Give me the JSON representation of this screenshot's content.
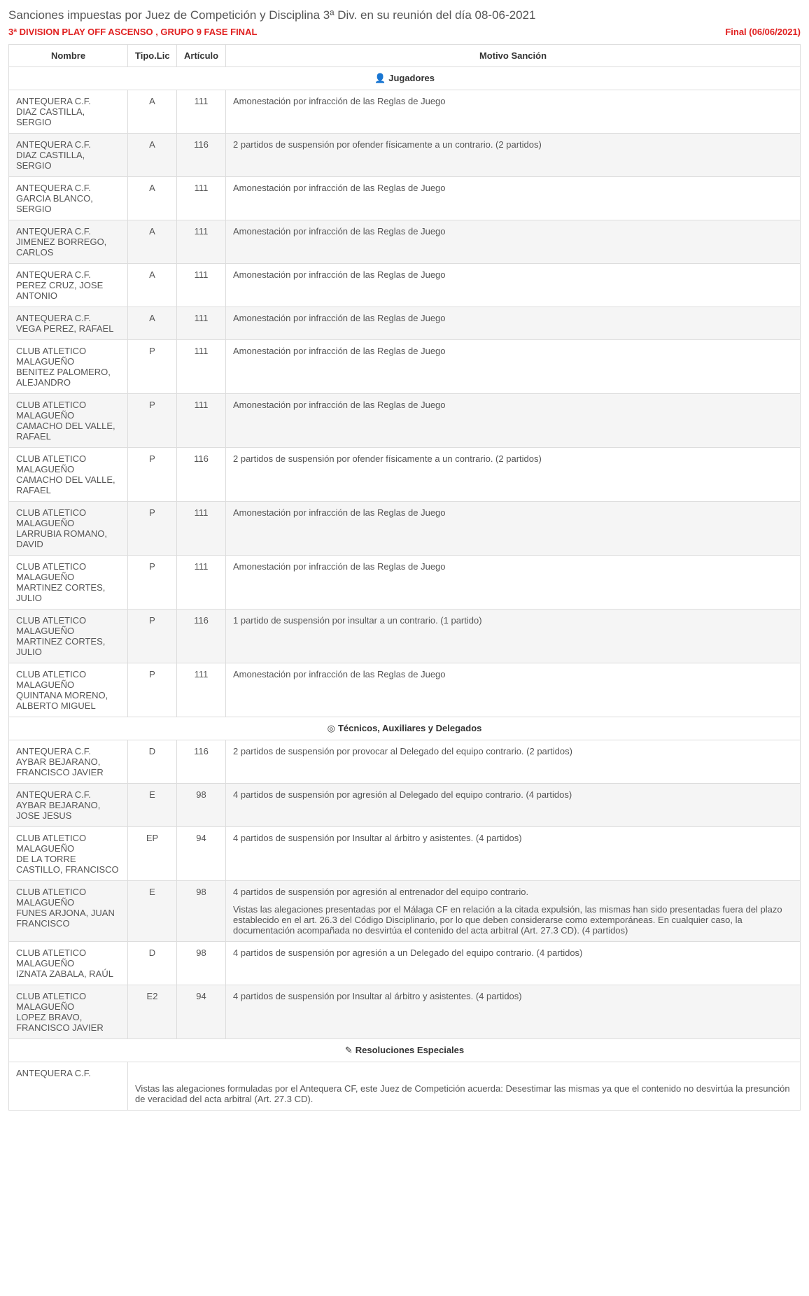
{
  "page": {
    "title": "Sanciones impuestas por Juez de Competición y Disciplina 3ª Div. en su reunión del día 08-06-2021",
    "competition": "3ª DIVISION PLAY OFF ASCENSO ,  GRUPO 9 FASE FINAL",
    "final_date": "Final (06/06/2021)"
  },
  "columns": {
    "nombre": "Nombre",
    "tipo": "Tipo.Lic",
    "articulo": "Artículo",
    "motivo": "Motivo Sanción"
  },
  "sections": {
    "jugadores": {
      "icon": "👤",
      "label": "Jugadores"
    },
    "tecnicos": {
      "icon": "◎",
      "label": "Técnicos, Auxiliares y Delegados"
    },
    "resoluciones": {
      "icon": "✎",
      "label": "Resoluciones Especiales"
    }
  },
  "jugadores": [
    {
      "club": "ANTEQUERA C.F.",
      "player": "DIAZ CASTILLA, SERGIO",
      "tipo": "A",
      "art": "111",
      "motivo": "Amonestación por infracción de las Reglas de Juego"
    },
    {
      "club": "ANTEQUERA C.F.",
      "player": "DIAZ CASTILLA, SERGIO",
      "tipo": "A",
      "art": "116",
      "motivo": "2 partidos de suspensión por ofender físicamente a un contrario.  (2 partidos)"
    },
    {
      "club": "ANTEQUERA C.F.",
      "player": "GARCIA BLANCO, SERGIO",
      "tipo": "A",
      "art": "111",
      "motivo": "Amonestación por infracción de las Reglas de Juego"
    },
    {
      "club": "ANTEQUERA C.F.",
      "player": "JIMENEZ BORREGO, CARLOS",
      "tipo": "A",
      "art": "111",
      "motivo": "Amonestación por infracción de las Reglas de Juego"
    },
    {
      "club": "ANTEQUERA C.F.",
      "player": "PEREZ CRUZ, JOSE ANTONIO",
      "tipo": "A",
      "art": "111",
      "motivo": "Amonestación por infracción de las Reglas de Juego"
    },
    {
      "club": "ANTEQUERA C.F.",
      "player": "VEGA PEREZ, RAFAEL",
      "tipo": "A",
      "art": "111",
      "motivo": "Amonestación por infracción de las Reglas de Juego"
    },
    {
      "club": "CLUB ATLETICO MALAGUEÑO",
      "player": "BENITEZ PALOMERO, ALEJANDRO",
      "tipo": "P",
      "art": "111",
      "motivo": "Amonestación por infracción de las Reglas de Juego"
    },
    {
      "club": "CLUB ATLETICO MALAGUEÑO",
      "player": "CAMACHO DEL VALLE, RAFAEL",
      "tipo": "P",
      "art": "111",
      "motivo": "Amonestación por infracción de las Reglas de Juego"
    },
    {
      "club": "CLUB ATLETICO MALAGUEÑO",
      "player": "CAMACHO DEL VALLE, RAFAEL",
      "tipo": "P",
      "art": "116",
      "motivo": "2 partidos de suspensión por ofender físicamente a un contrario.  (2 partidos)"
    },
    {
      "club": "CLUB ATLETICO MALAGUEÑO",
      "player": "LARRUBIA ROMANO, DAVID",
      "tipo": "P",
      "art": "111",
      "motivo": "Amonestación por infracción de las Reglas de Juego"
    },
    {
      "club": "CLUB ATLETICO MALAGUEÑO",
      "player": "MARTINEZ CORTES, JULIO",
      "tipo": "P",
      "art": "111",
      "motivo": "Amonestación por infracción de las Reglas de Juego"
    },
    {
      "club": "CLUB ATLETICO MALAGUEÑO",
      "player": "MARTINEZ CORTES, JULIO",
      "tipo": "P",
      "art": "116",
      "motivo": "1 partido de suspensión por insultar a un contrario.  (1 partido)"
    },
    {
      "club": "CLUB ATLETICO MALAGUEÑO",
      "player": "QUINTANA MORENO, ALBERTO MIGUEL",
      "tipo": "P",
      "art": "111",
      "motivo": "Amonestación por infracción de las Reglas de Juego"
    }
  ],
  "tecnicos": [
    {
      "club": "ANTEQUERA C.F.",
      "player": "AYBAR BEJARANO, FRANCISCO JAVIER",
      "tipo": "D",
      "art": "116",
      "motivo": "2 partidos de suspensión por provocar al Delegado del equipo contrario.  (2 partidos)"
    },
    {
      "club": "ANTEQUERA C.F.",
      "player": "AYBAR BEJARANO, JOSE JESUS",
      "tipo": "E",
      "art": "98",
      "motivo": "4 partidos de suspensión por agresión al Delegado del equipo contrario.  (4 partidos)"
    },
    {
      "club": "CLUB ATLETICO MALAGUEÑO",
      "player": "DE LA TORRE CASTILLO, FRANCISCO",
      "tipo": "EP",
      "art": "94",
      "motivo": "4 partidos de suspensión por Insultar al árbitro y asistentes.  (4 partidos)"
    },
    {
      "club": "CLUB ATLETICO MALAGUEÑO",
      "player": "FUNES ARJONA, JUAN FRANCISCO",
      "tipo": "E",
      "art": "98",
      "motivo_paras": [
        "4 partidos de suspensión por agresión al entrenador del equipo contrario.",
        "Vistas las alegaciones presentadas por el Málaga CF en relación a la citada expulsión, las mismas han sido presentadas fuera del plazo establecido en el art. 26.3 del Código Disciplinario, por lo que deben considerarse como extemporáneas. En cualquier caso, la documentación acompañada no desvirtúa el contenido del acta arbitral (Art. 27.3 CD).  (4 partidos)"
      ]
    },
    {
      "club": "CLUB ATLETICO MALAGUEÑO",
      "player": "IZNATA ZABALA, RAÚL",
      "tipo": "D",
      "art": "98",
      "motivo": "4 partidos de suspensión por agresión a un Delegado del equipo contrario.  (4 partidos)"
    },
    {
      "club": "CLUB ATLETICO MALAGUEÑO",
      "player": "LOPEZ BRAVO, FRANCISCO JAVIER",
      "tipo": "E2",
      "art": "94",
      "motivo": "4 partidos de suspensión por Insultar al árbitro y asistentes.  (4 partidos)"
    }
  ],
  "resoluciones": [
    {
      "club": "ANTEQUERA C.F.",
      "body": "Vistas las alegaciones formuladas por el Antequera CF, este Juez de Competición acuerda: Desestimar las mismas ya que el contenido no desvirtúa la presunción de veracidad del acta arbitral (Art. 27.3 CD)."
    }
  ],
  "colors": {
    "accent": "#e02020",
    "border": "#dddddd",
    "stripe": "#f5f5f5",
    "text": "#555555",
    "heading": "#333333",
    "background": "#ffffff"
  }
}
